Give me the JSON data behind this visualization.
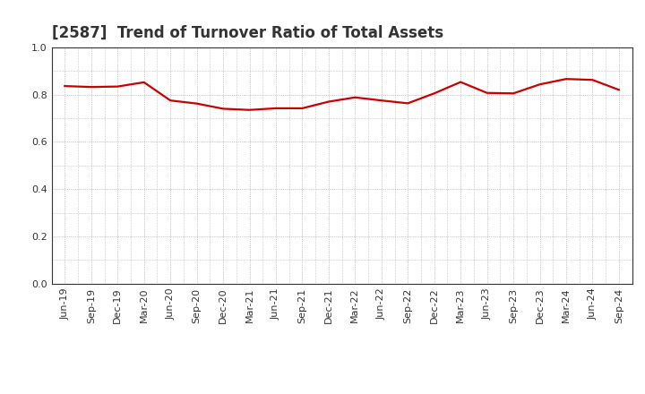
{
  "title": "[2587]  Trend of Turnover Ratio of Total Assets",
  "labels": [
    "Jun-19",
    "Sep-19",
    "Dec-19",
    "Mar-20",
    "Jun-20",
    "Sep-20",
    "Dec-20",
    "Mar-21",
    "Jun-21",
    "Sep-21",
    "Dec-21",
    "Mar-22",
    "Jun-22",
    "Sep-22",
    "Dec-22",
    "Mar-23",
    "Jun-23",
    "Sep-23",
    "Dec-23",
    "Mar-24",
    "Jun-24",
    "Sep-24"
  ],
  "values": [
    0.836,
    0.832,
    0.834,
    0.852,
    0.775,
    0.762,
    0.74,
    0.735,
    0.742,
    0.742,
    0.77,
    0.788,
    0.775,
    0.763,
    0.805,
    0.853,
    0.807,
    0.805,
    0.843,
    0.866,
    0.862,
    0.82
  ],
  "ylim": [
    0.0,
    1.0
  ],
  "yticks": [
    0.0,
    0.2,
    0.4,
    0.6,
    0.8,
    1.0
  ],
  "line_color": "#cc0000",
  "line_width": 1.6,
  "background_color": "#ffffff",
  "plot_bg_color": "#ffffff",
  "grid_color": "#999999",
  "title_fontsize": 12,
  "tick_fontsize": 8,
  "title_color": "#333333",
  "tick_color": "#333333",
  "spine_color": "#333333"
}
